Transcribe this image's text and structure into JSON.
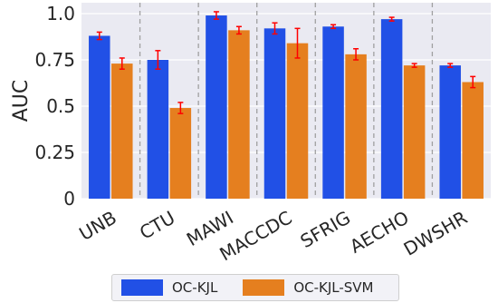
{
  "chart_data": {
    "type": "bar",
    "title": "",
    "xlabel": "",
    "ylabel": "AUC",
    "ylim": [
      0,
      1.0
    ],
    "yticks": [
      0,
      0.25,
      0.5,
      0.75,
      1.0
    ],
    "ytick_labels": [
      "0",
      "0.25",
      "0.5",
      "0.75",
      "1.0"
    ],
    "grid": true,
    "categories": [
      "UNB",
      "CTU",
      "MAWI",
      "MACCDC",
      "SFRIG",
      "AECHO",
      "DWSHR"
    ],
    "series": [
      {
        "name": "OC-KJL",
        "color": "#2150e6",
        "values": [
          0.88,
          0.75,
          0.99,
          0.92,
          0.93,
          0.97,
          0.72
        ],
        "errors": [
          0.02,
          0.05,
          0.02,
          0.03,
          0.01,
          0.01,
          0.01
        ]
      },
      {
        "name": "OC-KJL-SVM",
        "color": "#e57f1f",
        "values": [
          0.73,
          0.49,
          0.91,
          0.84,
          0.78,
          0.72,
          0.63
        ],
        "errors": [
          0.03,
          0.03,
          0.02,
          0.08,
          0.03,
          0.01,
          0.03
        ]
      }
    ],
    "error_bar_color": "#ff0000",
    "separator_color": "#a0a0a0",
    "legend_position": "bottom-center"
  }
}
